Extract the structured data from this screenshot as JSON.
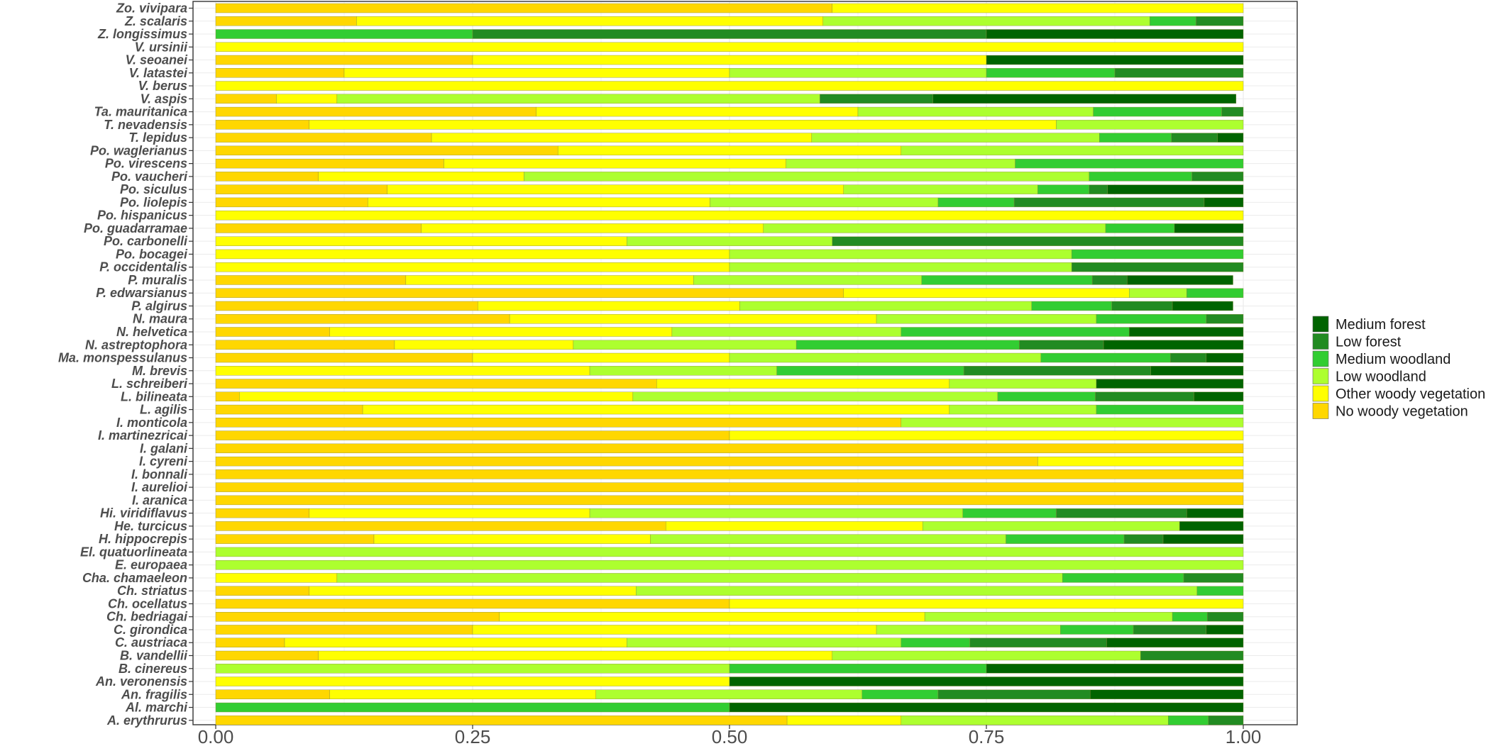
{
  "chart_data": {
    "type": "bar",
    "orientation": "horizontal",
    "stacked": true,
    "normalized": true,
    "title": "",
    "xlabel": "",
    "ylabel": "",
    "xlim": [
      0,
      1
    ],
    "x_ticks": [
      "0.00",
      "0.25",
      "0.50",
      "0.75",
      "1.00"
    ],
    "x_tick_values": [
      0,
      0.25,
      0.5,
      0.75,
      1
    ],
    "grid": true,
    "legend_position": "right",
    "categories": [
      "Zo. vivipara",
      "Z. scalaris",
      "Z. longissimus",
      "V. ursinii",
      "V. seoanei",
      "V. latastei",
      "V. berus",
      "V. aspis",
      "Ta. mauritanica",
      "T. nevadensis",
      "T. lepidus",
      "Po. waglerianus",
      "Po. virescens",
      "Po. vaucheri",
      "Po. siculus",
      "Po. liolepis",
      "Po. hispanicus",
      "Po. guadarramae",
      "Po. carbonelli",
      "Po. bocagei",
      "P. occidentalis",
      "P. muralis",
      "P. edwarsianus",
      "P. algirus",
      "N. maura",
      "N. helvetica",
      "N. astreptophora",
      "Ma. monspessulanus",
      "M. brevis",
      "L. schreiberi",
      "L. bilineata",
      "L. agilis",
      "I. monticola",
      "I. martinezricai",
      "I. galani",
      "I. cyreni",
      "I. bonnali",
      "I. aurelioi",
      "I. aranica",
      "Hi. viridiflavus",
      "He. turcicus",
      "H. hippocrepis",
      "El. quatuorlineata",
      "E. europaea",
      "Cha. chamaeleon",
      "Ch. striatus",
      "Ch. ocellatus",
      "Ch. bedriagai",
      "C. girondica",
      "C. austriaca",
      "B. vandellii",
      "B. cinereus",
      "An. veronensis",
      "An. fragilis",
      "Al. marchi",
      "A. erythrurus"
    ],
    "series": [
      {
        "name": "No woody vegetation",
        "color": "#FFD700",
        "values": [
          0.6,
          0.137,
          0,
          0,
          0.25,
          0.125,
          0,
          0.059,
          0.312,
          0.091,
          0.21,
          0.333,
          0.222,
          0.1,
          0.167,
          0.148,
          0,
          0.2,
          0,
          0,
          0,
          0.185,
          0.611,
          0.255,
          0.286,
          0.111,
          0.174,
          0.25,
          0,
          0.429,
          0.023,
          0.143,
          0.667,
          0.5,
          1,
          0.8,
          1,
          1,
          1,
          0.091,
          0.438,
          0.154,
          0,
          0,
          0,
          0.091,
          0.5,
          0.276,
          0.25,
          0.067,
          0.1,
          0,
          0,
          0.111,
          0,
          0.556
        ]
      },
      {
        "name": "Other woody vegetation",
        "color": "#FFFF00",
        "values": [
          0.4,
          0.454,
          0,
          1,
          0.5,
          0.375,
          1,
          0.059,
          0.313,
          0.727,
          0.37,
          0.334,
          0.333,
          0.2,
          0.444,
          0.333,
          1,
          0.333,
          0.4,
          0.5,
          0.5,
          0.28,
          0.278,
          0.255,
          0.357,
          0.333,
          0.174,
          0.25,
          0.364,
          0.285,
          0.383,
          0.571,
          0,
          0.5,
          0,
          0.2,
          0,
          0,
          0,
          0.273,
          0.25,
          0.269,
          0,
          0,
          0.118,
          0.318,
          0.5,
          0.414,
          0.393,
          0.333,
          0.5,
          0,
          0.5,
          0.259,
          0,
          0.111
        ]
      },
      {
        "name": "Low woodland",
        "color": "#ADFF2F",
        "values": [
          0,
          0.318,
          0,
          0,
          0,
          0.25,
          0,
          0.47,
          0.229,
          0.182,
          0.28,
          0.333,
          0.223,
          0.55,
          0.189,
          0.222,
          0,
          0.333,
          0.2,
          0.333,
          0.333,
          0.222,
          0.056,
          0.284,
          0.214,
          0.223,
          0.217,
          0.303,
          0.182,
          0.143,
          0.355,
          0.143,
          0.333,
          0,
          0,
          0,
          0,
          0,
          0,
          0.363,
          0.25,
          0.346,
          1,
          1,
          0.706,
          0.546,
          0,
          0.241,
          0.179,
          0.267,
          0.3,
          0.5,
          0,
          0.259,
          0,
          0.26
        ]
      },
      {
        "name": "Medium woodland",
        "color": "#32CD32",
        "values": [
          0,
          0.045,
          0.25,
          0,
          0,
          0.125,
          0,
          0,
          0.125,
          0,
          0.07,
          0,
          0.222,
          0.1,
          0.05,
          0.074,
          0,
          0.067,
          0,
          0.167,
          0,
          0.166,
          0.055,
          0.078,
          0.107,
          0.222,
          0.217,
          0.126,
          0.182,
          0,
          0.095,
          0.143,
          0,
          0,
          0,
          0,
          0,
          0,
          0,
          0.091,
          0,
          0.115,
          0,
          0,
          0.118,
          0.045,
          0,
          0.034,
          0.071,
          0.067,
          0,
          0.25,
          0,
          0.074,
          0.5,
          0.039
        ]
      },
      {
        "name": "Low forest",
        "color": "#228B22",
        "values": [
          0,
          0.046,
          0.5,
          0,
          0,
          0.125,
          0,
          0.11,
          0.021,
          0,
          0.045,
          0,
          0,
          0.05,
          0.018,
          0.185,
          0,
          0,
          0.4,
          0,
          0.167,
          0.034,
          0,
          0.059,
          0.036,
          0,
          0.082,
          0.035,
          0.182,
          0,
          0.096,
          0,
          0,
          0,
          0,
          0,
          0,
          0,
          0,
          0.127,
          0,
          0.038,
          0,
          0,
          0.058,
          0,
          0,
          0.035,
          0.071,
          0.133,
          0.1,
          0,
          0,
          0.148,
          0,
          0.034
        ]
      },
      {
        "name": "Medium forest",
        "color": "#006400",
        "values": [
          0,
          0,
          0.25,
          0,
          0.25,
          0,
          0,
          0.295,
          0,
          0,
          0.025,
          0,
          0,
          0,
          0.132,
          0.038,
          0,
          0.067,
          0,
          0,
          0,
          0.103,
          0,
          0.059,
          0,
          0.111,
          0.136,
          0.036,
          0.09,
          0.143,
          0.048,
          0,
          0,
          0,
          0,
          0,
          0,
          0,
          0,
          0.055,
          0.062,
          0.078,
          0,
          0,
          0,
          0,
          0,
          0,
          0.036,
          0.133,
          0,
          0.25,
          0.5,
          0.149,
          0.5,
          0
        ]
      }
    ],
    "legend_order": [
      "Medium forest",
      "Low forest",
      "Medium woodland",
      "Low woodland",
      "Other woody vegetation",
      "No woody vegetation"
    ]
  }
}
